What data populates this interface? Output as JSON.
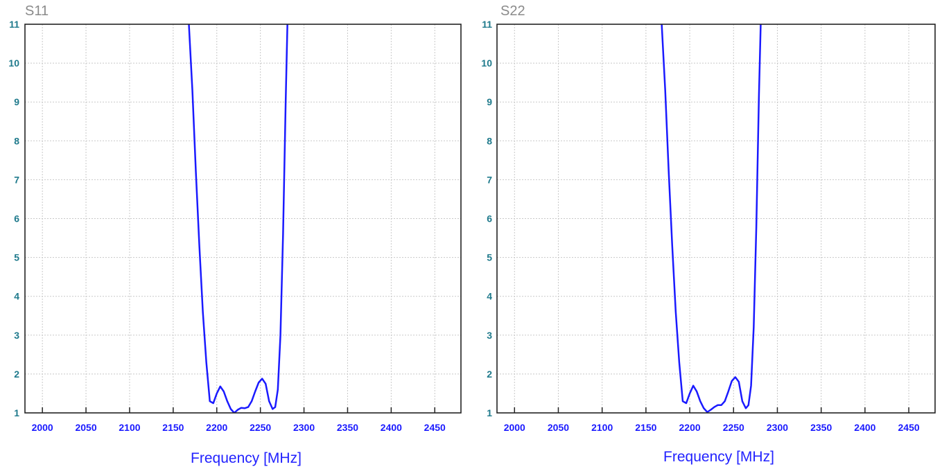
{
  "chart_data": [
    {
      "type": "line",
      "title": "S11",
      "xlabel": "Frequency [MHz]",
      "ylabel": "",
      "xlim": [
        1980,
        2480
      ],
      "ylim": [
        1,
        11
      ],
      "xticks": [
        "2000",
        "2050",
        "2100",
        "2150",
        "2200",
        "2250",
        "2300",
        "2350",
        "2400",
        "2450"
      ],
      "yticks": [
        "1",
        "2",
        "3",
        "4",
        "5",
        "6",
        "7",
        "8",
        "9",
        "10",
        "11"
      ],
      "grid": true,
      "series_color": "#1a1aff",
      "series": [
        {
          "x": [
            2168,
            2172,
            2176,
            2180,
            2184,
            2188,
            2192,
            2196,
            2200,
            2204,
            2208,
            2212,
            2216,
            2220,
            2224,
            2228,
            2232,
            2236,
            2240,
            2244,
            2248,
            2252,
            2256,
            2260,
            2264,
            2267,
            2270,
            2273,
            2276,
            2279,
            2281
          ],
          "y": [
            11.0,
            9.3,
            7.2,
            5.3,
            3.6,
            2.3,
            1.3,
            1.25,
            1.5,
            1.68,
            1.55,
            1.3,
            1.1,
            1.0,
            1.08,
            1.13,
            1.12,
            1.15,
            1.3,
            1.55,
            1.78,
            1.88,
            1.75,
            1.3,
            1.1,
            1.15,
            1.6,
            3.0,
            5.6,
            9.0,
            11.0
          ]
        }
      ]
    },
    {
      "type": "line",
      "title": "S22",
      "xlabel": "Frequency [MHz]",
      "ylabel": "",
      "xlim": [
        1980,
        2480
      ],
      "ylim": [
        1,
        11
      ],
      "xticks": [
        "2000",
        "2050",
        "2100",
        "2150",
        "2200",
        "2250",
        "2300",
        "2350",
        "2400",
        "2450"
      ],
      "yticks": [
        "1",
        "2",
        "3",
        "4",
        "5",
        "6",
        "7",
        "8",
        "9",
        "10",
        "11"
      ],
      "grid": true,
      "series_color": "#1a1aff",
      "series": [
        {
          "x": [
            2168,
            2172,
            2176,
            2180,
            2184,
            2188,
            2192,
            2196,
            2200,
            2204,
            2208,
            2212,
            2216,
            2220,
            2224,
            2228,
            2232,
            2236,
            2240,
            2244,
            2248,
            2252,
            2256,
            2260,
            2264,
            2267,
            2270,
            2273,
            2276,
            2279,
            2281
          ],
          "y": [
            11.0,
            9.3,
            7.2,
            5.3,
            3.6,
            2.3,
            1.3,
            1.25,
            1.5,
            1.7,
            1.55,
            1.3,
            1.12,
            1.02,
            1.08,
            1.15,
            1.2,
            1.2,
            1.3,
            1.55,
            1.82,
            1.92,
            1.8,
            1.3,
            1.12,
            1.2,
            1.7,
            3.2,
            5.8,
            9.2,
            11.0
          ]
        }
      ]
    }
  ]
}
